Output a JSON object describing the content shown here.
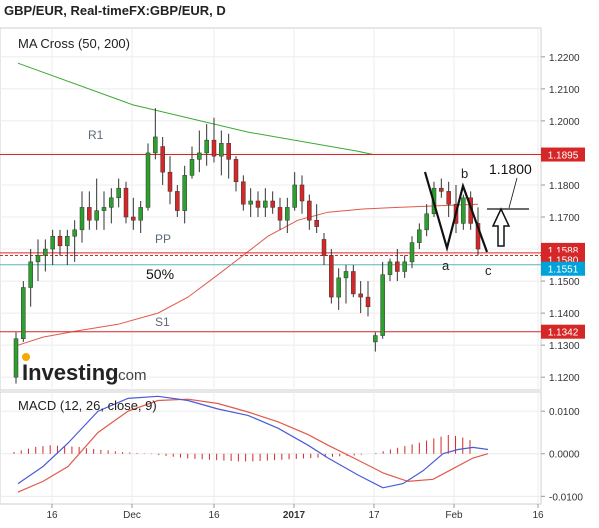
{
  "header": {
    "title": "GBP/EUR, Real-timeFX:GBP/EUR, D"
  },
  "main_panel": {
    "indicator_label": "MA Cross (50, 200)"
  },
  "macd_panel": {
    "indicator_label": "MACD (12, 26, close, 9)"
  },
  "logo": {
    "text": "Investing",
    "suffix": ".com"
  },
  "annotations": {
    "r1": "R1",
    "pp": "PP",
    "s1": "S1",
    "fifty": "50%",
    "wave_a": "a",
    "wave_b": "b",
    "wave_c": "c",
    "target": "1.1800"
  },
  "colors": {
    "bull": "#2ca02c",
    "bear": "#d62728",
    "level": "#d62728",
    "ma_fast": "#e05a4a",
    "ma_slow": "#3aaa35",
    "macd": "#4a5bd6",
    "signal": "#e05a4a",
    "current_line": "#5bb5b5",
    "current_badge": "#00a3d9"
  },
  "chart_data": [
    {
      "type": "candlestick",
      "y_ticks": [
        "1.2200",
        "1.2100",
        "1.2000",
        "1.1900",
        "1.1800",
        "1.1700",
        "1.1600",
        "1.1500",
        "1.1400",
        "1.1300",
        "1.1200"
      ],
      "x_ticks": [
        "16",
        "Dec",
        "16",
        "2017",
        "17",
        "Feb",
        "16"
      ],
      "ylim": [
        1.116,
        1.229
      ],
      "price_badges": [
        {
          "label": "1.1895",
          "value": 1.1895,
          "color": "#d62728"
        },
        {
          "label": "1.1588",
          "value": 1.1588,
          "color": "#d62728"
        },
        {
          "label": "1.1580",
          "value": 1.158,
          "color": "#d62728"
        },
        {
          "label": "1.1551",
          "value": 1.1551,
          "color": "#00a3d9"
        },
        {
          "label": "1.1342",
          "value": 1.1342,
          "color": "#d62728"
        }
      ],
      "levels": {
        "R1": 1.1895,
        "PP": 1.1584,
        "S1": 1.1342,
        "current": 1.1551
      },
      "ma_slow": [
        [
          0,
          1.218
        ],
        [
          115,
          1.205
        ],
        [
          230,
          1.1965
        ],
        [
          340,
          1.1905
        ],
        [
          355,
          1.1895
        ]
      ],
      "ma_fast": [
        [
          0,
          1.13
        ],
        [
          25,
          1.1325
        ],
        [
          60,
          1.1345
        ],
        [
          100,
          1.1365
        ],
        [
          140,
          1.14
        ],
        [
          170,
          1.145
        ],
        [
          200,
          1.152
        ],
        [
          225,
          1.158
        ],
        [
          250,
          1.164
        ],
        [
          280,
          1.169
        ],
        [
          310,
          1.1715
        ],
        [
          345,
          1.1725
        ],
        [
          380,
          1.173
        ],
        [
          420,
          1.1735
        ],
        [
          460,
          1.174
        ]
      ],
      "candles": [
        [
          1.12,
          1.134,
          1.118,
          1.132
        ],
        [
          1.132,
          1.15,
          1.131,
          1.148
        ],
        [
          1.148,
          1.16,
          1.142,
          1.156
        ],
        [
          1.156,
          1.163,
          1.15,
          1.158
        ],
        [
          1.158,
          1.163,
          1.153,
          1.16
        ],
        [
          1.16,
          1.166,
          1.155,
          1.164
        ],
        [
          1.164,
          1.166,
          1.158,
          1.161
        ],
        [
          1.161,
          1.166,
          1.155,
          1.164
        ],
        [
          1.164,
          1.169,
          1.156,
          1.166
        ],
        [
          1.166,
          1.178,
          1.162,
          1.173
        ],
        [
          1.173,
          1.178,
          1.166,
          1.169
        ],
        [
          1.169,
          1.182,
          1.166,
          1.172
        ],
        [
          1.172,
          1.178,
          1.166,
          1.173
        ],
        [
          1.173,
          1.179,
          1.168,
          1.176
        ],
        [
          1.176,
          1.182,
          1.173,
          1.179
        ],
        [
          1.179,
          1.181,
          1.168,
          1.17
        ],
        [
          1.17,
          1.176,
          1.166,
          1.169
        ],
        [
          1.169,
          1.175,
          1.165,
          1.173
        ],
        [
          1.173,
          1.193,
          1.172,
          1.19
        ],
        [
          1.19,
          1.204,
          1.188,
          1.195
        ],
        [
          1.192,
          1.195,
          1.18,
          1.184
        ],
        [
          1.184,
          1.189,
          1.174,
          1.178
        ],
        [
          1.178,
          1.18,
          1.17,
          1.172
        ],
        [
          1.172,
          1.186,
          1.168,
          1.183
        ],
        [
          1.183,
          1.192,
          1.182,
          1.188
        ],
        [
          1.188,
          1.197,
          1.184,
          1.19
        ],
        [
          1.19,
          1.199,
          1.186,
          1.194
        ],
        [
          1.194,
          1.201,
          1.187,
          1.189
        ],
        [
          1.189,
          1.197,
          1.183,
          1.193
        ],
        [
          1.193,
          1.196,
          1.182,
          1.188
        ],
        [
          1.188,
          1.189,
          1.178,
          1.181
        ],
        [
          1.181,
          1.183,
          1.172,
          1.174
        ],
        [
          1.174,
          1.179,
          1.17,
          1.175
        ],
        [
          1.175,
          1.178,
          1.17,
          1.173
        ],
        [
          1.173,
          1.179,
          1.17,
          1.175
        ],
        [
          1.175,
          1.178,
          1.171,
          1.173
        ],
        [
          1.173,
          1.176,
          1.166,
          1.169
        ],
        [
          1.169,
          1.176,
          1.165,
          1.173
        ],
        [
          1.173,
          1.184,
          1.172,
          1.18
        ],
        [
          1.18,
          1.183,
          1.171,
          1.175
        ],
        [
          1.175,
          1.177,
          1.166,
          1.169
        ],
        [
          1.169,
          1.174,
          1.165,
          1.167
        ],
        [
          1.163,
          1.165,
          1.155,
          1.158
        ],
        [
          1.158,
          1.16,
          1.143,
          1.145
        ],
        [
          1.145,
          1.154,
          1.141,
          1.151
        ],
        [
          1.151,
          1.155,
          1.143,
          1.153
        ],
        [
          1.153,
          1.155,
          1.145,
          1.146
        ],
        [
          1.146,
          1.15,
          1.14,
          1.145
        ],
        [
          1.145,
          1.15,
          1.139,
          1.142
        ],
        [
          1.131,
          1.134,
          1.128,
          1.133
        ],
        [
          1.133,
          1.156,
          1.132,
          1.152
        ],
        [
          1.152,
          1.157,
          1.15,
          1.156
        ],
        [
          1.156,
          1.16,
          1.15,
          1.153
        ],
        [
          1.153,
          1.158,
          1.151,
          1.156
        ],
        [
          1.156,
          1.164,
          1.154,
          1.162
        ],
        [
          1.162,
          1.168,
          1.16,
          1.166
        ],
        [
          1.166,
          1.174,
          1.164,
          1.171
        ],
        [
          1.171,
          1.181,
          1.17,
          1.179
        ],
        [
          1.179,
          1.182,
          1.176,
          1.178
        ],
        [
          1.178,
          1.181,
          1.17,
          1.174
        ],
        [
          1.174,
          1.18,
          1.165,
          1.168
        ],
        [
          1.168,
          1.177,
          1.166,
          1.176
        ],
        [
          1.176,
          1.178,
          1.166,
          1.168
        ],
        [
          1.168,
          1.173,
          1.158,
          1.16
        ]
      ],
      "macd_y_ticks": [
        "0.0100",
        "0.0000",
        "-0.0100"
      ],
      "macd_ylim": [
        -0.0118,
        0.0145
      ],
      "macd_hist": [
        0.0004,
        0.0008,
        0.0012,
        0.0016,
        0.0018,
        0.002,
        0.0019,
        0.0018,
        0.0017,
        0.0016,
        0.0013,
        0.0011,
        0.0009,
        0.0008,
        0.0006,
        0.0004,
        0.0003,
        0.0002,
        0.0001,
        -0.0001,
        -0.0003,
        -0.0005,
        -0.0007,
        -0.0009,
        -0.0011,
        -0.0012,
        -0.0013,
        -0.0014,
        -0.0015,
        -0.0016,
        -0.0017,
        -0.0018,
        -0.0018,
        -0.0018,
        -0.0017,
        -0.0016,
        -0.0015,
        -0.0014,
        -0.0013,
        -0.0012,
        -0.0011,
        -0.001,
        -0.0009,
        -0.0008,
        -0.0007,
        -0.0006,
        -0.0005,
        -0.0004,
        -0.0002,
        0.0,
        0.0002,
        0.0006,
        0.001,
        0.0014,
        0.0018,
        0.0022,
        0.0026,
        0.0031,
        0.0036,
        0.004,
        0.0044,
        0.0042,
        0.0038,
        0.0032
      ],
      "macd_line": [
        [
          0,
          -0.007
        ],
        [
          25,
          -0.003
        ],
        [
          50,
          0.0025
        ],
        [
          80,
          0.01
        ],
        [
          110,
          0.013
        ],
        [
          140,
          0.0135
        ],
        [
          170,
          0.0125
        ],
        [
          200,
          0.0105
        ],
        [
          230,
          0.009
        ],
        [
          260,
          0.006
        ],
        [
          290,
          0.002
        ],
        [
          310,
          -0.001
        ],
        [
          340,
          -0.005
        ],
        [
          365,
          -0.008
        ],
        [
          385,
          -0.007
        ],
        [
          405,
          -0.004
        ],
        [
          425,
          0.0
        ],
        [
          440,
          0.001
        ],
        [
          455,
          0.0015
        ],
        [
          470,
          0.001
        ]
      ],
      "signal_line": [
        [
          0,
          -0.009
        ],
        [
          25,
          -0.0065
        ],
        [
          50,
          -0.003
        ],
        [
          80,
          0.005
        ],
        [
          110,
          0.01
        ],
        [
          140,
          0.0125
        ],
        [
          170,
          0.0128
        ],
        [
          200,
          0.0118
        ],
        [
          230,
          0.0098
        ],
        [
          260,
          0.0075
        ],
        [
          290,
          0.0045
        ],
        [
          310,
          0.002
        ],
        [
          340,
          -0.0015
        ],
        [
          365,
          -0.0045
        ],
        [
          390,
          -0.0065
        ],
        [
          415,
          -0.006
        ],
        [
          435,
          -0.0035
        ],
        [
          455,
          -0.001
        ],
        [
          470,
          0.0
        ]
      ]
    }
  ]
}
